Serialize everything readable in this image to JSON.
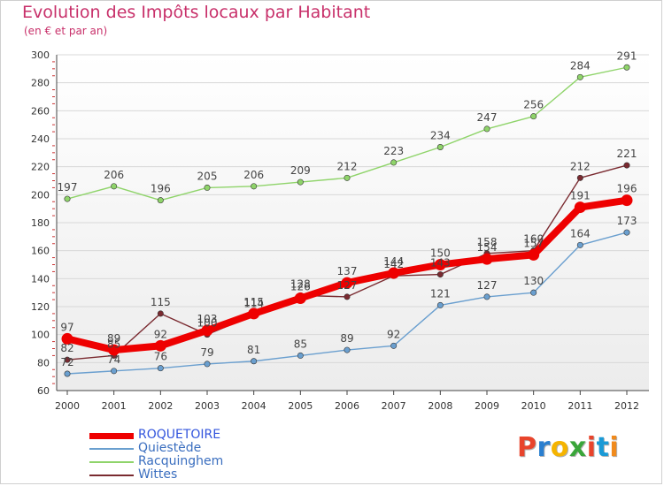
{
  "header": {
    "title": "Evolution des Impôts locaux par Habitant",
    "subtitle": "(en € et par an)"
  },
  "logo": {
    "text": "Proxiti",
    "colors": [
      "#e8442c",
      "#2a7fd0",
      "#f5b400",
      "#3aa63a",
      "#e8442c",
      "#1a9ad6",
      "#f08a1c"
    ]
  },
  "chart_data": {
    "type": "line",
    "x": [
      "2000",
      "2001",
      "2002",
      "2003",
      "2004",
      "2005",
      "2006",
      "2007",
      "2008",
      "2009",
      "2010",
      "2011",
      "2012"
    ],
    "ylim": [
      60,
      300
    ],
    "yticks": [
      "60",
      "80",
      "100",
      "120",
      "140",
      "160",
      "180",
      "200",
      "220",
      "240",
      "260",
      "280",
      "300"
    ],
    "grid": true,
    "legend_position": "bottom-left",
    "series": [
      {
        "name": "ROQUETOIRE",
        "color": "#ee0000",
        "bold": true,
        "values": [
          97,
          89,
          92,
          103,
          115,
          126,
          137,
          144,
          150,
          154,
          157,
          191,
          196
        ],
        "labels": [
          "97",
          "89",
          "92",
          "103",
          "115",
          "126",
          "137",
          "144",
          "150",
          "154",
          "157",
          "191",
          "196"
        ]
      },
      {
        "name": "Quiestède",
        "color": "#6a9fcf",
        "values": [
          72,
          74,
          76,
          79,
          81,
          85,
          89,
          92,
          121,
          127,
          130,
          164,
          173
        ],
        "labels": [
          "72",
          "74",
          "76",
          "79",
          "81",
          "85",
          "89",
          "92",
          "121",
          "127",
          "130",
          "164",
          "173"
        ]
      },
      {
        "name": "Racquinghem",
        "color": "#8fd46a",
        "values": [
          197,
          206,
          196,
          205,
          206,
          209,
          212,
          223,
          234,
          247,
          256,
          284,
          291
        ],
        "labels": [
          "197",
          "206",
          "196",
          "205",
          "206",
          "209",
          "212",
          "223",
          "234",
          "247",
          "256",
          "284",
          "291"
        ]
      },
      {
        "name": "Wittes",
        "color": "#7a2a30",
        "values": [
          82,
          85,
          115,
          100,
          114,
          128,
          127,
          142,
          143,
          158,
          160,
          212,
          221
        ],
        "labels": [
          "82",
          "85",
          "115",
          "100",
          "114",
          "128",
          "127",
          "142",
          "143",
          "158",
          "160",
          "212",
          "221"
        ]
      }
    ]
  }
}
